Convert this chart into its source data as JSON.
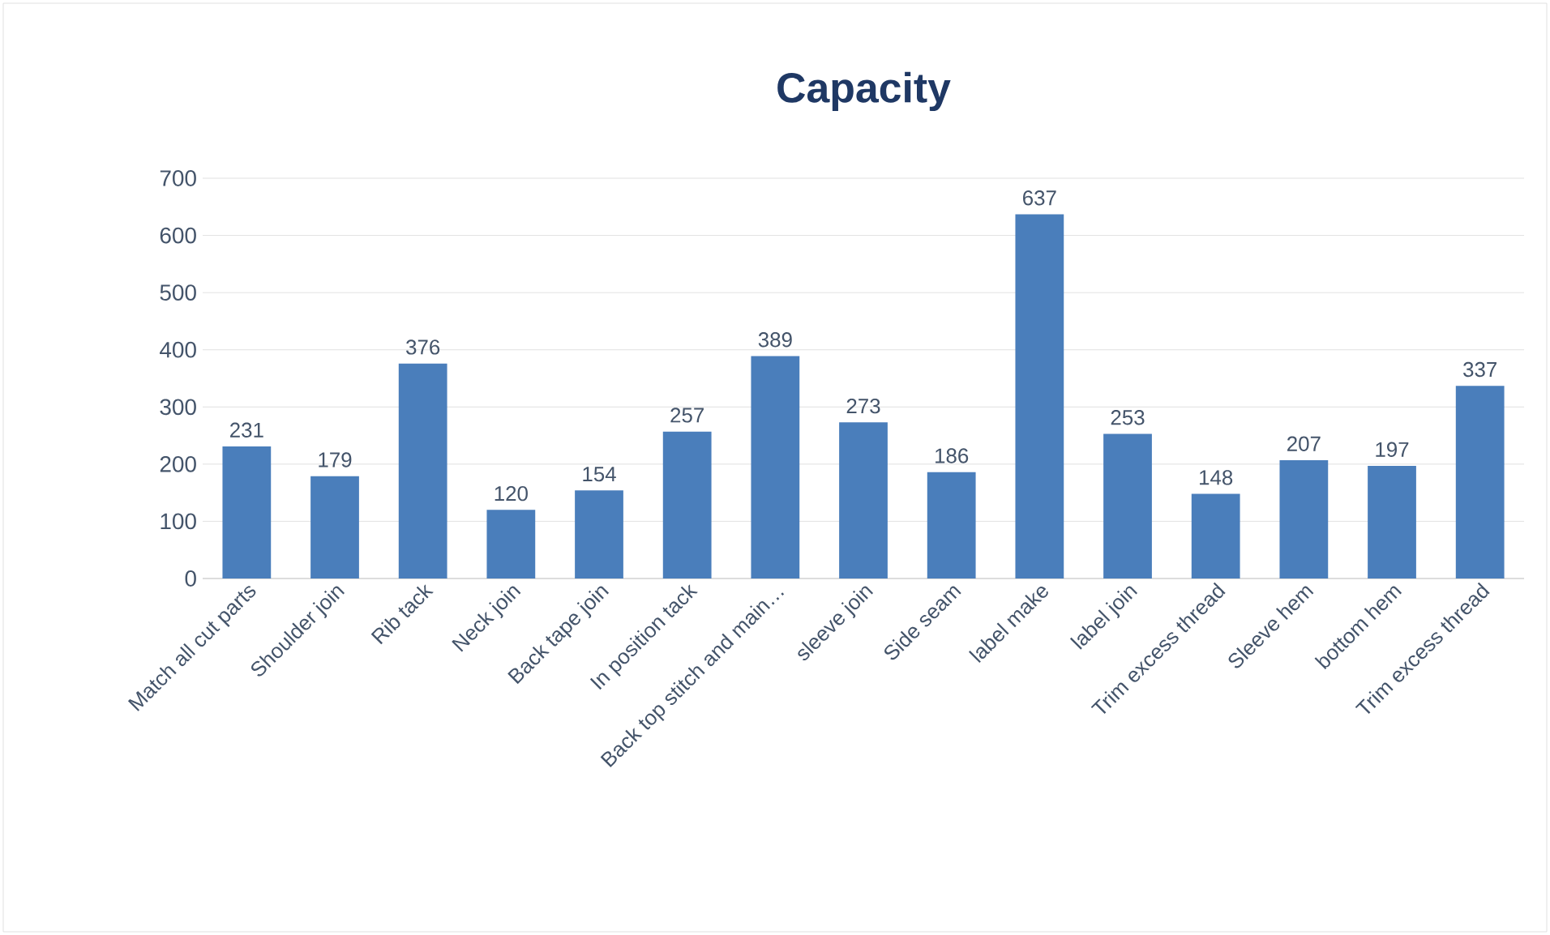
{
  "chart_data": {
    "type": "bar",
    "title": "Capacity",
    "categories": [
      "Match all cut parts",
      "Shoulder join",
      "Rib tack",
      "Neck join",
      "Back tape join",
      "In position tack",
      "Back top stitch and main…",
      "sleeve join",
      "Side seam",
      "label make",
      "label join",
      "Trim excess thread",
      "Sleeve hem",
      "bottom hem",
      "Trim excess thread"
    ],
    "values": [
      231,
      179,
      376,
      120,
      154,
      257,
      389,
      273,
      186,
      637,
      253,
      148,
      207,
      197,
      337
    ],
    "color": "#4a7ebb",
    "ylim": [
      0,
      700
    ],
    "yticks": [
      0,
      100,
      200,
      300,
      400,
      500,
      600,
      700
    ],
    "grid": "y",
    "data_labels": true
  }
}
